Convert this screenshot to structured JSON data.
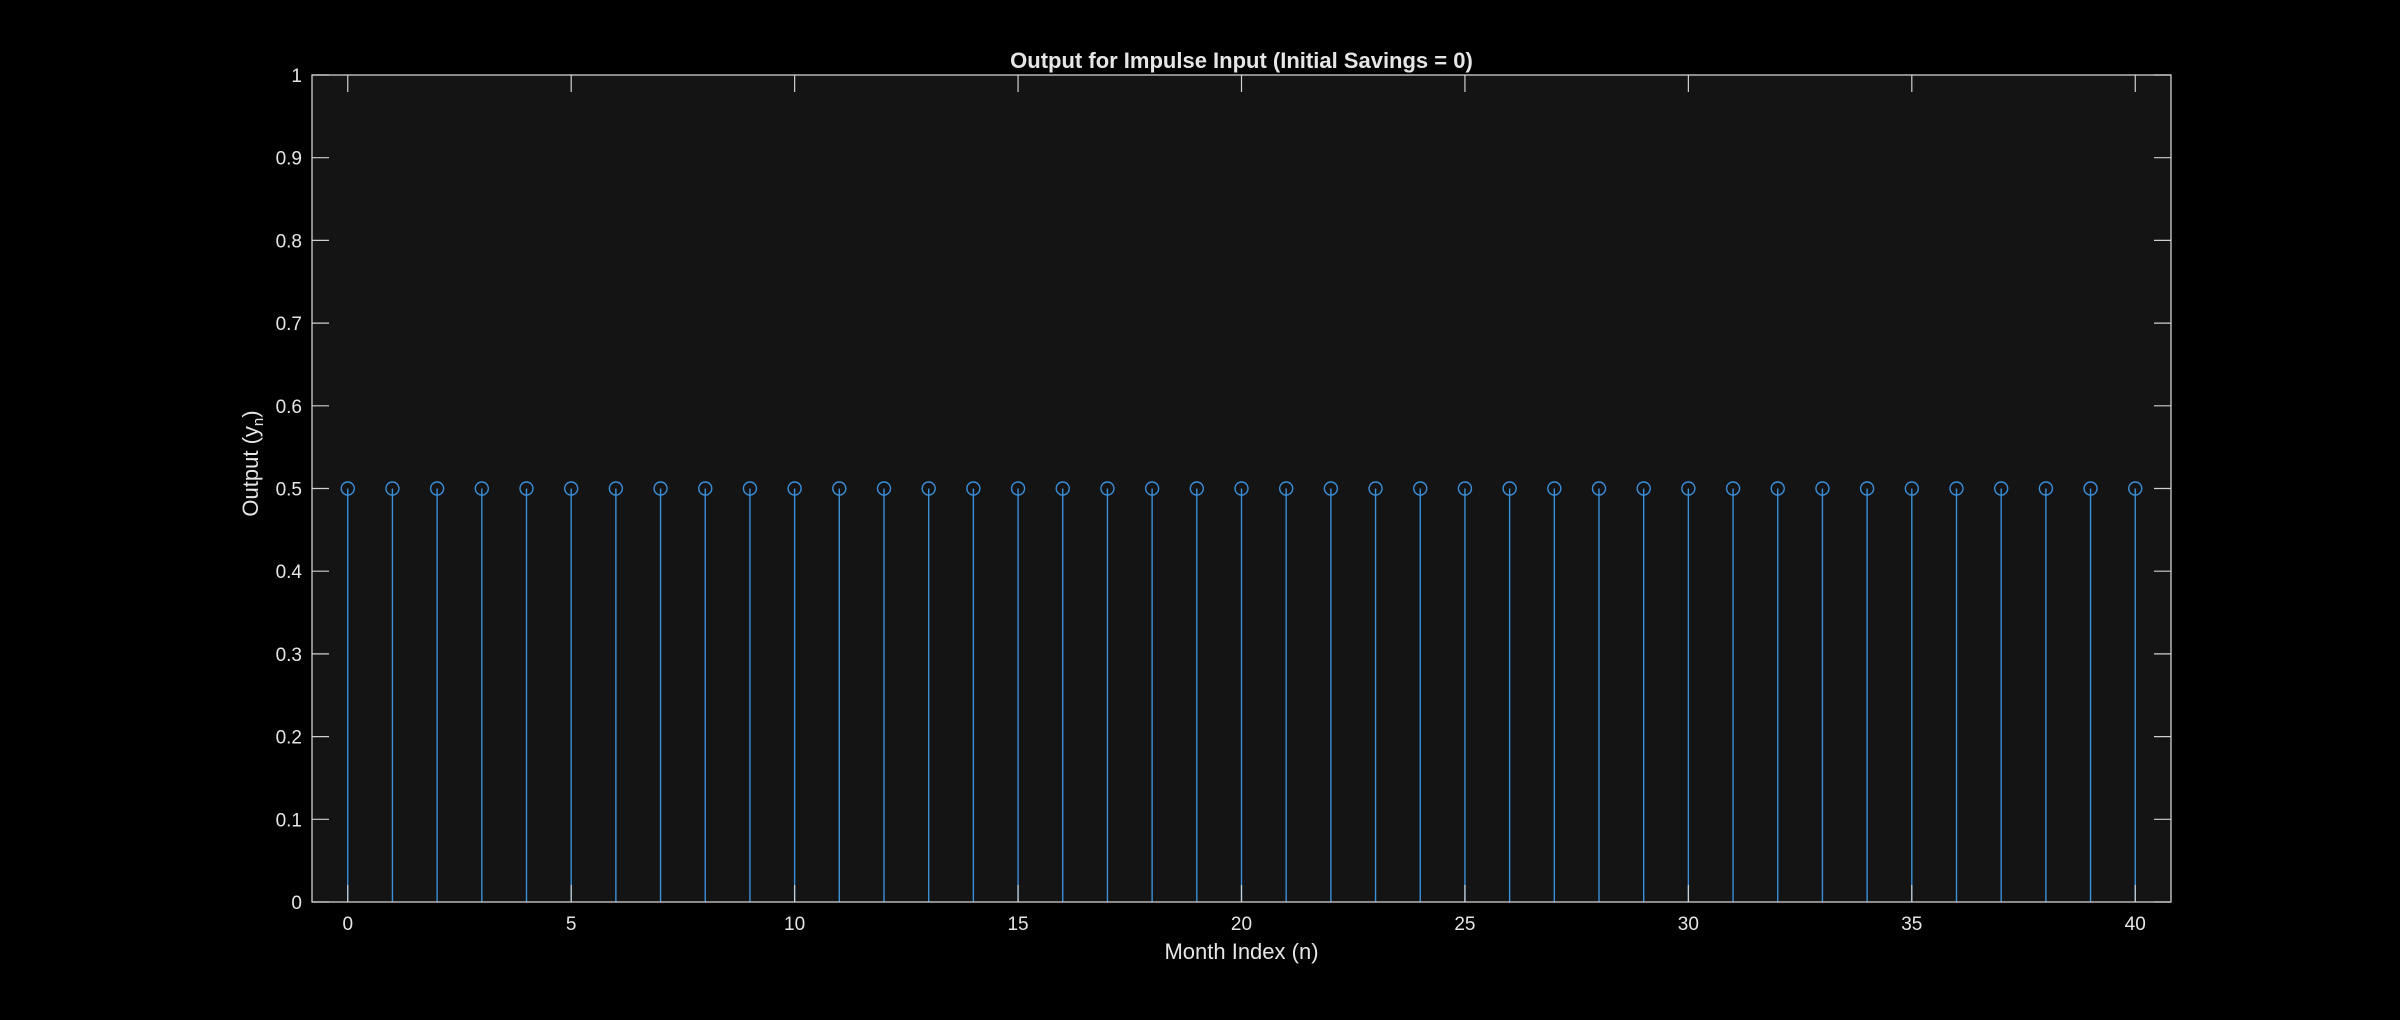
{
  "figure": {
    "background": "#000000"
  },
  "chart_data": {
    "type": "stem",
    "title": "Output for Impulse Input (Initial Savings = 0)",
    "xlabel": "Month Index (n)",
    "ylabel": {
      "text": "Output  (y",
      "subscript": "n",
      "suffix": ")"
    },
    "xlim": [
      -0.8,
      40.8
    ],
    "ylim": [
      0,
      1
    ],
    "xticks": [
      0,
      5,
      10,
      15,
      20,
      25,
      30,
      35,
      40
    ],
    "xtick_labels": [
      "0",
      "5",
      "10",
      "15",
      "20",
      "25",
      "30",
      "35",
      "40"
    ],
    "yticks": [
      0,
      0.1,
      0.2,
      0.3,
      0.4,
      0.5,
      0.6,
      0.7,
      0.8,
      0.9,
      1
    ],
    "ytick_labels": [
      "0",
      "0.1",
      "0.2",
      "0.3",
      "0.4",
      "0.5",
      "0.6",
      "0.7",
      "0.8",
      "0.9",
      "1"
    ],
    "grid": false,
    "series": [
      {
        "color": "#3a8fd8",
        "marker": "circle",
        "x": [
          0,
          1,
          2,
          3,
          4,
          5,
          6,
          7,
          8,
          9,
          10,
          11,
          12,
          13,
          14,
          15,
          16,
          17,
          18,
          19,
          20,
          21,
          22,
          23,
          24,
          25,
          26,
          27,
          28,
          29,
          30,
          31,
          32,
          33,
          34,
          35,
          36,
          37,
          38,
          39,
          40
        ],
        "y": [
          0.5,
          0.5,
          0.5,
          0.5,
          0.5,
          0.5,
          0.5,
          0.5,
          0.5,
          0.5,
          0.5,
          0.5,
          0.5,
          0.5,
          0.5,
          0.5,
          0.5,
          0.5,
          0.5,
          0.5,
          0.5,
          0.5,
          0.5,
          0.5,
          0.5,
          0.5,
          0.5,
          0.5,
          0.5,
          0.5,
          0.5,
          0.5,
          0.5,
          0.5,
          0.5,
          0.5,
          0.5,
          0.5,
          0.5,
          0.5,
          0.5
        ]
      }
    ],
    "colors": {
      "axes_background": "#141414",
      "axes_line": "#d0d0d0",
      "text": "#e6e6e6"
    }
  }
}
